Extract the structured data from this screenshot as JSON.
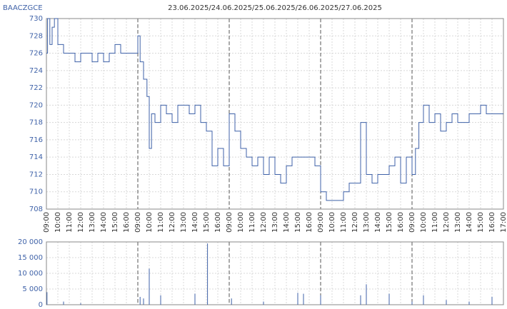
{
  "header": {
    "symbol": "BAACZGCE",
    "title": "23.06.2025/24.06.2025/25.06.2025/26.06.2025/27.06.2025"
  },
  "chart_data": [
    {
      "type": "line",
      "color": "#3f62a8",
      "grid": true,
      "step": true,
      "xlim": [
        0,
        40
      ],
      "ylim": [
        708,
        730
      ],
      "yticks": [
        708,
        710,
        712,
        714,
        716,
        718,
        720,
        722,
        724,
        726,
        728,
        730
      ],
      "day_breaks": [
        8,
        16,
        24,
        32
      ],
      "xticks": [
        {
          "value": 0,
          "label": "09:00"
        },
        {
          "value": 1,
          "label": "10:00"
        },
        {
          "value": 2,
          "label": "11:00"
        },
        {
          "value": 3,
          "label": "12:00"
        },
        {
          "value": 4,
          "label": "13:00"
        },
        {
          "value": 5,
          "label": "14:00"
        },
        {
          "value": 6,
          "label": "15:00"
        },
        {
          "value": 7,
          "label": "16:00"
        },
        {
          "value": 8,
          "label": "09:00"
        },
        {
          "value": 9,
          "label": "10:00"
        },
        {
          "value": 10,
          "label": "11:00"
        },
        {
          "value": 11,
          "label": "12:00"
        },
        {
          "value": 12,
          "label": "13:00"
        },
        {
          "value": 13,
          "label": "14:00"
        },
        {
          "value": 14,
          "label": "15:00"
        },
        {
          "value": 15,
          "label": "16:00"
        },
        {
          "value": 16,
          "label": "09:00"
        },
        {
          "value": 17,
          "label": "10:00"
        },
        {
          "value": 18,
          "label": "11:00"
        },
        {
          "value": 19,
          "label": "12:00"
        },
        {
          "value": 20,
          "label": "13:00"
        },
        {
          "value": 21,
          "label": "14:00"
        },
        {
          "value": 22,
          "label": "15:00"
        },
        {
          "value": 23,
          "label": "16:00"
        },
        {
          "value": 24,
          "label": "09:00"
        },
        {
          "value": 25,
          "label": "10:00"
        },
        {
          "value": 26,
          "label": "11:00"
        },
        {
          "value": 27,
          "label": "12:00"
        },
        {
          "value": 28,
          "label": "13:00"
        },
        {
          "value": 29,
          "label": "14:00"
        },
        {
          "value": 30,
          "label": "15:00"
        },
        {
          "value": 31,
          "label": "16:00"
        },
        {
          "value": 32,
          "label": "09:00"
        },
        {
          "value": 33,
          "label": "10:00"
        },
        {
          "value": 34,
          "label": "11:00"
        },
        {
          "value": 35,
          "label": "12:00"
        },
        {
          "value": 36,
          "label": "13:00"
        },
        {
          "value": 37,
          "label": "14:00"
        },
        {
          "value": 38,
          "label": "15:00"
        },
        {
          "value": 39,
          "label": "16:00"
        },
        {
          "value": 40,
          "label": "17:00"
        }
      ],
      "x": [
        0,
        0.1,
        0.3,
        0.5,
        0.7,
        1,
        1.5,
        2,
        2.5,
        3,
        3.5,
        4,
        4.5,
        5,
        5.5,
        6,
        6.5,
        7,
        7.5,
        8,
        8.2,
        8.5,
        8.8,
        9,
        9.2,
        9.5,
        10,
        10.5,
        11,
        11.5,
        12,
        12.5,
        13,
        13.5,
        14,
        14.5,
        15,
        15.5,
        16,
        16.5,
        17,
        17.5,
        18,
        18.5,
        19,
        19.5,
        20,
        20.5,
        21,
        21.5,
        22,
        22.5,
        23,
        23.5,
        24,
        24.5,
        25,
        25.5,
        26,
        26.5,
        27,
        27.5,
        28,
        28.5,
        29,
        29.5,
        30,
        30.5,
        31,
        31.5,
        32,
        32.3,
        32.6,
        33,
        33.5,
        34,
        34.5,
        35,
        35.5,
        36,
        36.5,
        37,
        37.5,
        38,
        38.5,
        39,
        39.5,
        40
      ],
      "series": [
        {
          "values": [
            726,
            730,
            727,
            729,
            730,
            727,
            726,
            726,
            725,
            726,
            726,
            725,
            726,
            725,
            726,
            727,
            726,
            726,
            726,
            728,
            725,
            723,
            721,
            715,
            719,
            718,
            720,
            719,
            718,
            720,
            720,
            719,
            720,
            718,
            717,
            713,
            715,
            713,
            719,
            717,
            715,
            714,
            713,
            714,
            712,
            714,
            712,
            711,
            713,
            714,
            714,
            714,
            714,
            713,
            710,
            709,
            709,
            709,
            710,
            711,
            711,
            718,
            712,
            711,
            712,
            712,
            713,
            714,
            711,
            714,
            712,
            715,
            718,
            720,
            718,
            719,
            717,
            718,
            719,
            718,
            718,
            719,
            719,
            720,
            719,
            719,
            719,
            719
          ]
        }
      ]
    },
    {
      "type": "bar",
      "color": "#3f62a8",
      "grid": true,
      "xlim": [
        0,
        40
      ],
      "ylim": [
        0,
        20000
      ],
      "yticks": [
        {
          "value": 0,
          "label": "0"
        },
        {
          "value": 5000,
          "label": "5 000"
        },
        {
          "value": 10000,
          "label": "10 000"
        },
        {
          "value": 15000,
          "label": "15 000"
        },
        {
          "value": 20000,
          "label": "20 000"
        }
      ],
      "x": [
        0.05,
        1.5,
        3,
        8.2,
        8.5,
        9,
        10,
        13,
        14.1,
        16.2,
        19,
        22,
        22.5,
        24,
        27.5,
        28,
        30,
        32,
        33,
        35,
        37,
        39
      ],
      "values": [
        4000,
        1000,
        500,
        2500,
        2000,
        11500,
        3000,
        3500,
        19500,
        2000,
        1000,
        3800,
        3500,
        3000,
        3000,
        6500,
        3500,
        1000,
        3000,
        1500,
        1000,
        2500
      ]
    }
  ]
}
